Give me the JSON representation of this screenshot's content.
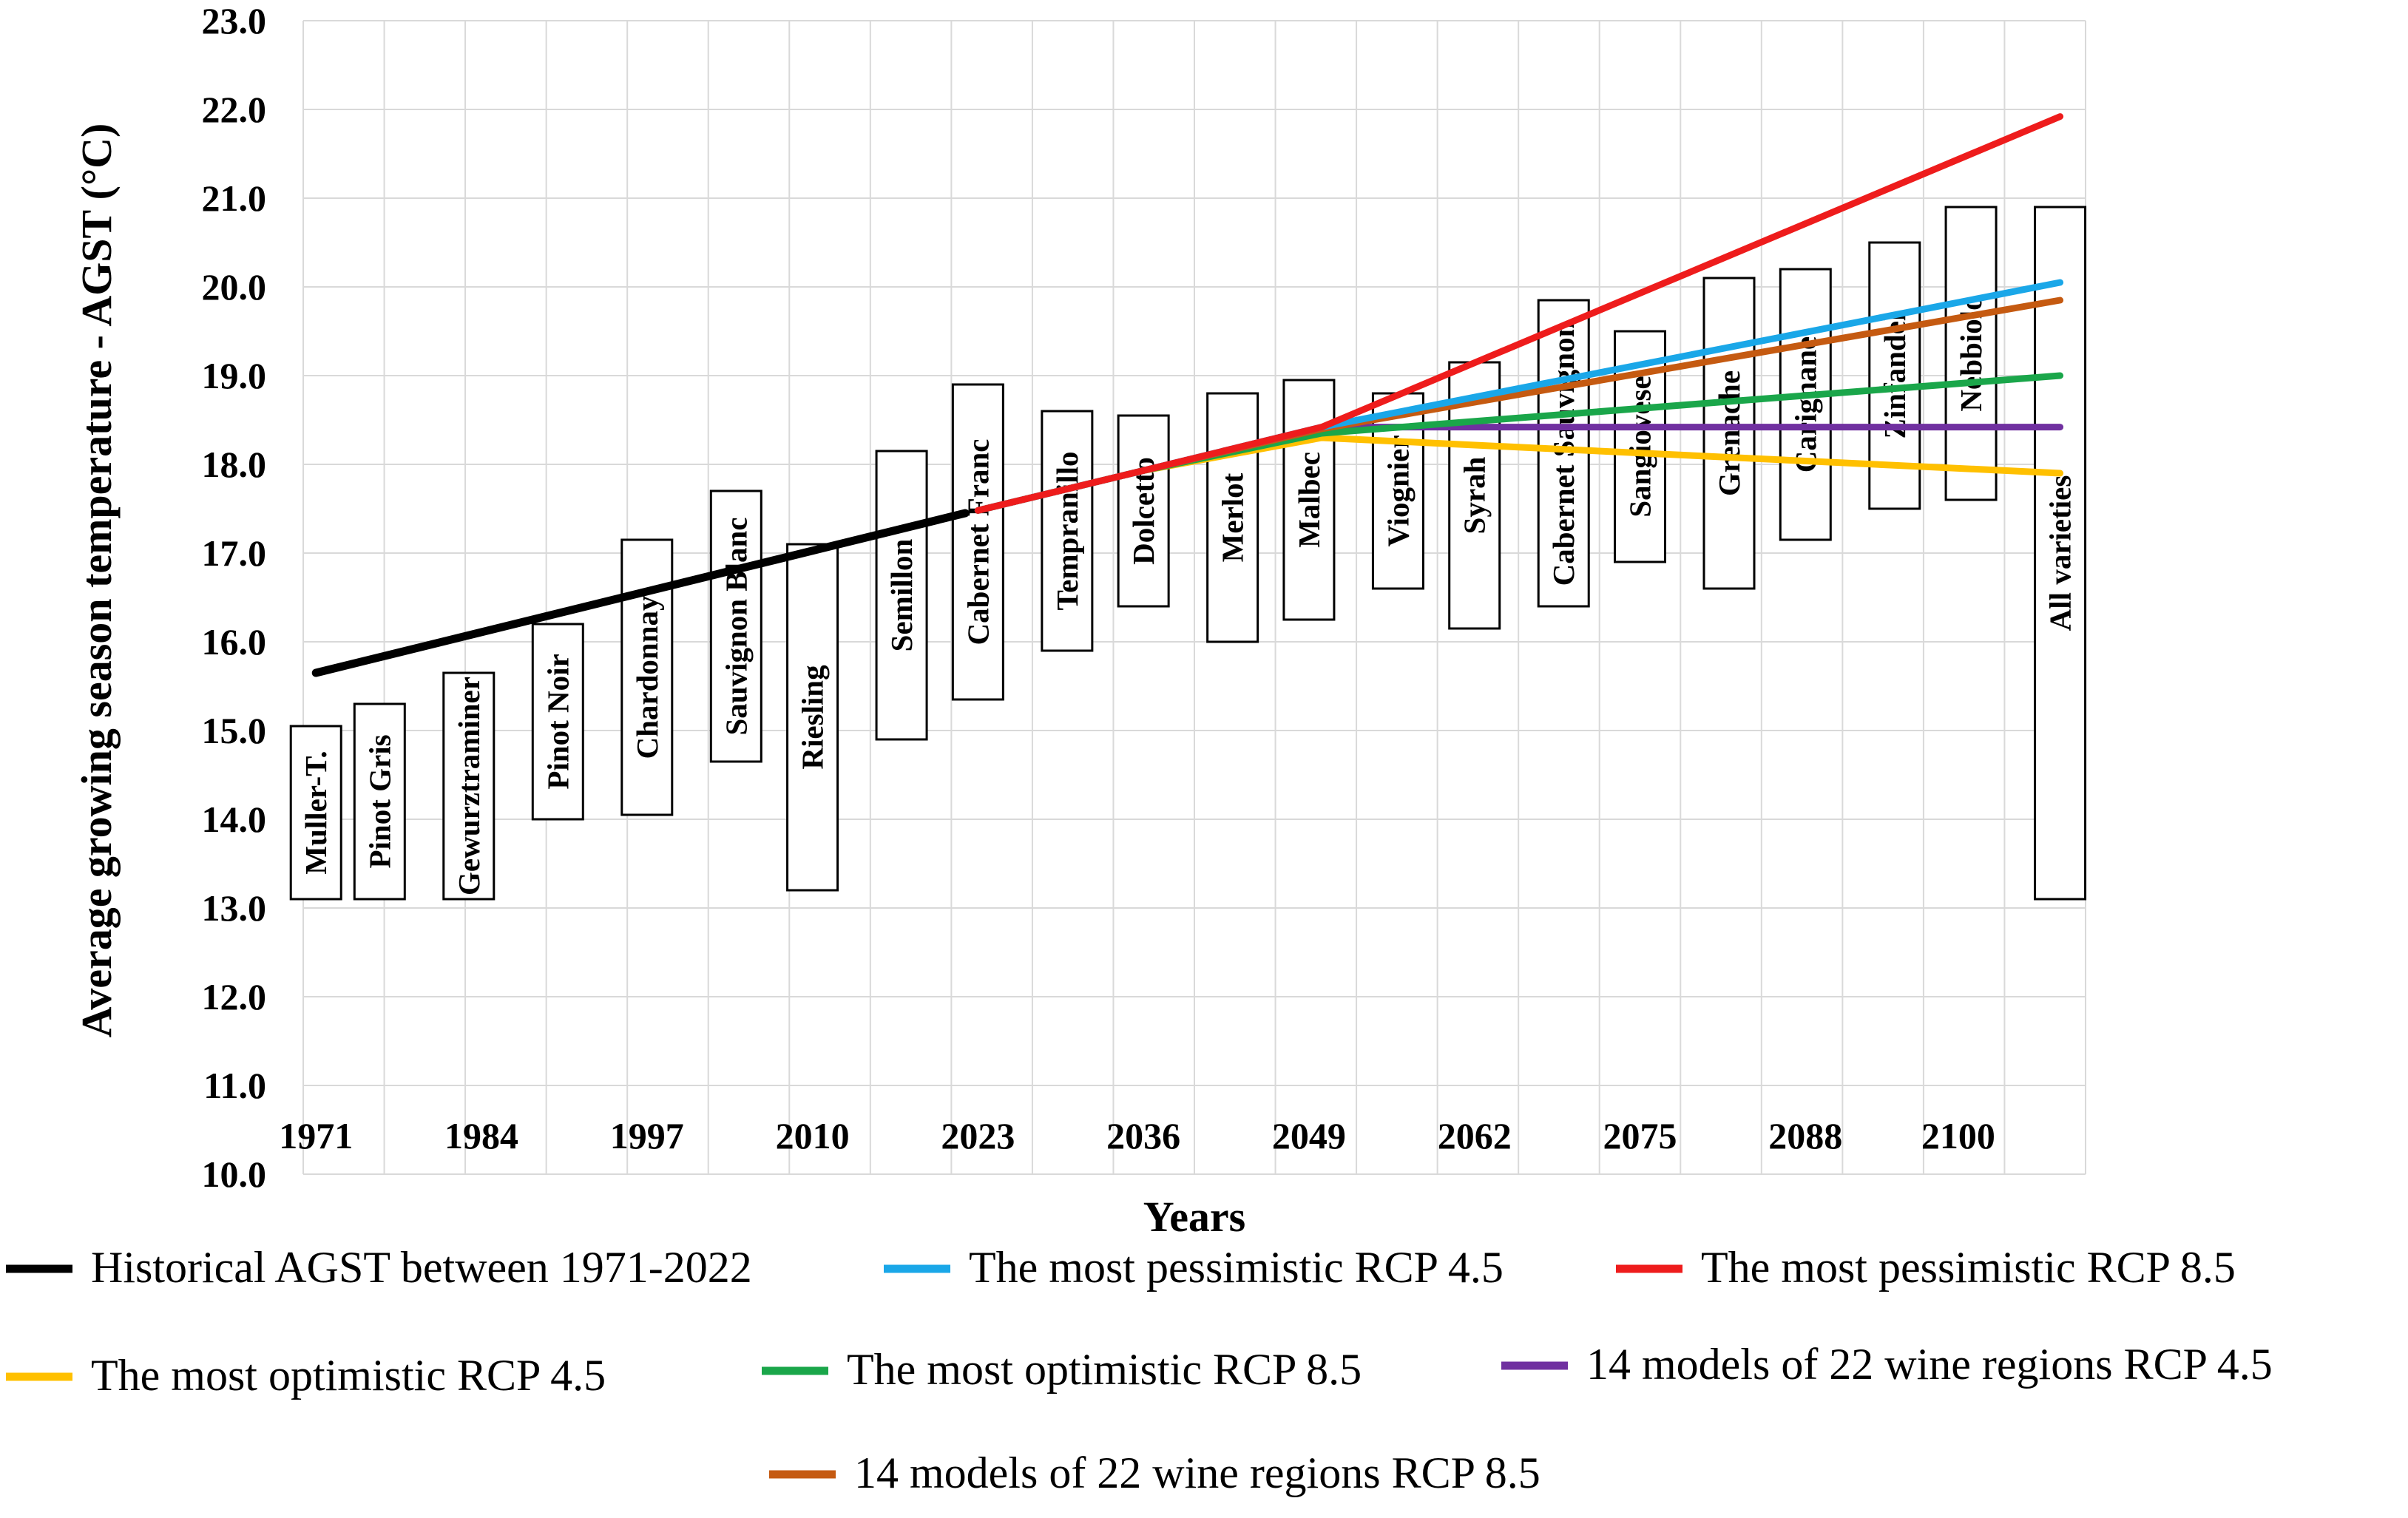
{
  "chart_data": {
    "type": "line",
    "title": "",
    "xlabel": "Years",
    "ylabel": "Average growing season temperature - AGST (°C)",
    "ylim": [
      10.0,
      23.0
    ],
    "yticks": [
      "10.0",
      "11.0",
      "12.0",
      "13.0",
      "14.0",
      "15.0",
      "16.0",
      "17.0",
      "18.0",
      "19.0",
      "20.0",
      "21.0",
      "22.0",
      "23.0"
    ],
    "xlim": [
      1970,
      2110
    ],
    "xticks": [
      "1971",
      "1984",
      "1997",
      "2010",
      "2023",
      "2036",
      "2049",
      "2062",
      "2075",
      "2088",
      "2100"
    ],
    "grid": true,
    "varieties": [
      {
        "name": "Muller-T.",
        "x": 1971,
        "low": 13.1,
        "high": 15.05
      },
      {
        "name": "Pinot Gris",
        "x": 1976,
        "low": 13.1,
        "high": 15.3
      },
      {
        "name": "Gewurztraminer",
        "x": 1983,
        "low": 13.1,
        "high": 15.65
      },
      {
        "name": "Pinot Noir",
        "x": 1990,
        "low": 14.0,
        "high": 16.2
      },
      {
        "name": "Chardonnay",
        "x": 1997,
        "low": 14.05,
        "high": 17.15
      },
      {
        "name": "Sauvignon Blanc",
        "x": 2004,
        "low": 14.65,
        "high": 17.7
      },
      {
        "name": "Riesling",
        "x": 2010,
        "low": 13.2,
        "high": 17.1
      },
      {
        "name": "Semillon",
        "x": 2017,
        "low": 14.9,
        "high": 18.15
      },
      {
        "name": "Cabernet Franc",
        "x": 2023,
        "low": 15.35,
        "high": 18.9
      },
      {
        "name": "Tempranillo",
        "x": 2030,
        "low": 15.9,
        "high": 18.6
      },
      {
        "name": "Dolcetto",
        "x": 2036,
        "low": 16.4,
        "high": 18.55
      },
      {
        "name": "Merlot",
        "x": 2043,
        "low": 16.0,
        "high": 18.8
      },
      {
        "name": "Malbec",
        "x": 2049,
        "low": 16.25,
        "high": 18.95
      },
      {
        "name": "Viognier",
        "x": 2056,
        "low": 16.6,
        "high": 18.8
      },
      {
        "name": "Syrah",
        "x": 2062,
        "low": 16.15,
        "high": 19.15
      },
      {
        "name": "Cabernet Sauvignon",
        "x": 2069,
        "low": 16.4,
        "high": 19.85
      },
      {
        "name": "Sangiovese",
        "x": 2075,
        "low": 16.9,
        "high": 19.5
      },
      {
        "name": "Grenache",
        "x": 2082,
        "low": 16.6,
        "high": 20.1
      },
      {
        "name": "Carignane",
        "x": 2088,
        "low": 17.15,
        "high": 20.2
      },
      {
        "name": "Zinfandel",
        "x": 2095,
        "low": 17.5,
        "high": 20.5
      },
      {
        "name": "Nebbiolo",
        "x": 2101,
        "low": 17.6,
        "high": 20.9
      },
      {
        "name": "All varieties",
        "x": 2108,
        "low": 13.1,
        "high": 20.9
      }
    ],
    "series": [
      {
        "name": "Historical AGST between 1971-2022",
        "color": "#000000",
        "x": [
          1971,
          2022
        ],
        "values": [
          15.65,
          17.45
        ]
      },
      {
        "name": "The most pessimistic  RCP 4.5",
        "color": "#1aa7e8",
        "x": [
          2023,
          2036,
          2050,
          2108
        ],
        "values": [
          17.48,
          17.93,
          18.42,
          20.05
        ]
      },
      {
        "name": "The most pessimistic RCP 8.5",
        "color": "#ee1c1c",
        "x": [
          2023,
          2036,
          2050,
          2108
        ],
        "values": [
          17.48,
          17.93,
          18.42,
          21.92
        ]
      },
      {
        "name": "The most optimistic RCP 4.5",
        "color": "#ffc000",
        "x": [
          2023,
          2036,
          2050,
          2108
        ],
        "values": [
          17.48,
          17.93,
          18.3,
          17.9
        ]
      },
      {
        "name": "The most optimistic RCP 8.5",
        "color": "#1aa64a",
        "x": [
          2023,
          2036,
          2050,
          2108
        ],
        "values": [
          17.48,
          17.93,
          18.35,
          19.0
        ]
      },
      {
        "name": "14 models  of 22 wine regions  RCP 4.5",
        "color": "#7030a0",
        "x": [
          2023,
          2036,
          2050,
          2108
        ],
        "values": [
          17.48,
          17.93,
          18.42,
          18.42
        ]
      },
      {
        "name": "14 models  of 22 wine regions  RCP 8.5",
        "color": "#c55a11",
        "x": [
          2023,
          2036,
          2050,
          2108
        ],
        "values": [
          17.48,
          17.93,
          18.4,
          19.85
        ]
      }
    ]
  }
}
